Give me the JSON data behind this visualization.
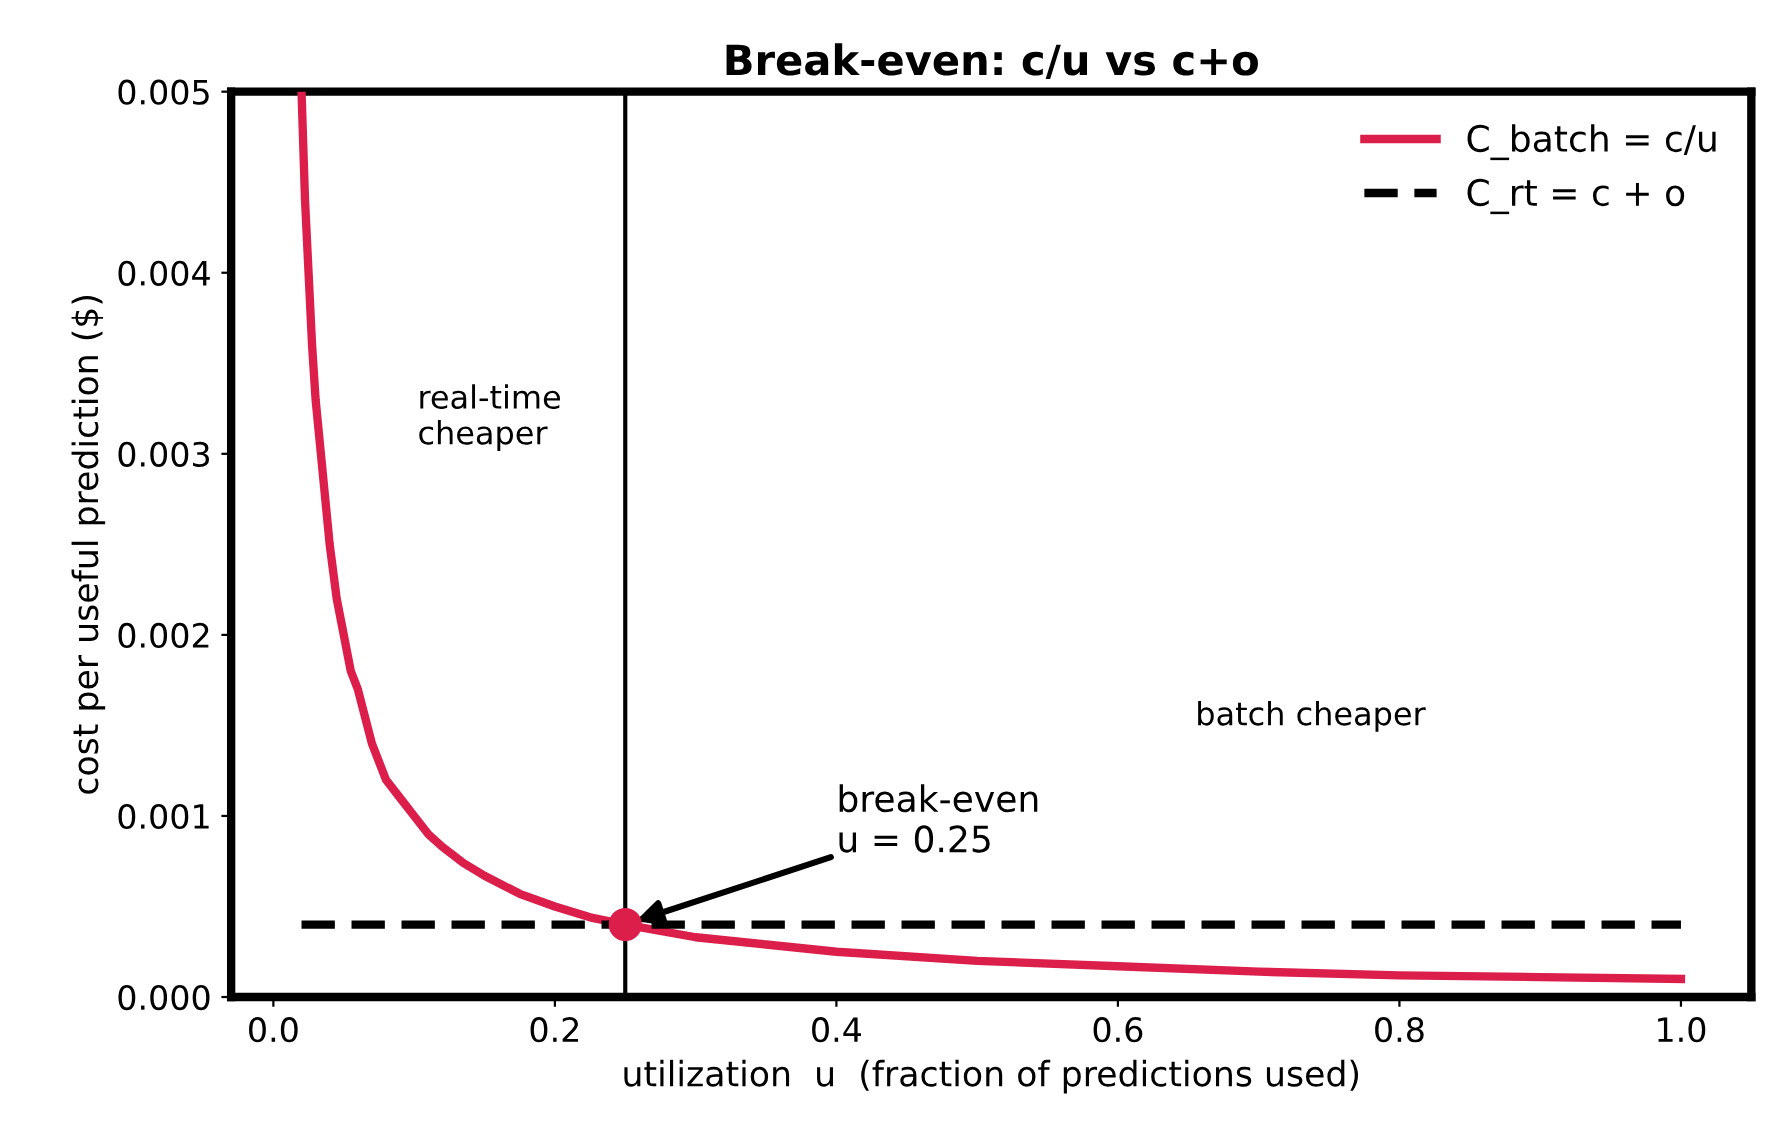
{
  "chart_data": {
    "type": "line",
    "title": "Break-even: c/u vs c+o",
    "xlabel": "utilization  u  (fraction of predictions used)",
    "ylabel": "cost per useful prediction ($)",
    "series": [
      {
        "name": "C_batch = c/u",
        "color": "#dc1e4b",
        "line_style": "solid",
        "x": [
          0.02,
          0.0225,
          0.025,
          0.0275,
          0.03,
          0.0325,
          0.035,
          0.04,
          0.045,
          0.05,
          0.055,
          0.06,
          0.07,
          0.08,
          0.09,
          0.1,
          0.11,
          0.12,
          0.135,
          0.15,
          0.175,
          0.2,
          0.225,
          0.25,
          0.3,
          0.35,
          0.4,
          0.5,
          0.6,
          0.7,
          0.8,
          0.9,
          1.0
        ],
        "values": [
          0.005,
          0.0044,
          0.004,
          0.0036,
          0.0033,
          0.0031,
          0.0029,
          0.0025,
          0.0022,
          0.002,
          0.0018,
          0.0017,
          0.0014,
          0.0012,
          0.0011,
          0.001,
          0.0009,
          0.00083,
          0.00074,
          0.00067,
          0.00057,
          0.0005,
          0.00044,
          0.0004,
          0.00033,
          0.00029,
          0.00025,
          0.0002,
          0.00017,
          0.00014,
          0.00012,
          0.00011,
          0.0001
        ]
      },
      {
        "name": "C_rt = c + o",
        "color": "#000000",
        "line_style": "dashed",
        "x": [
          0.02,
          1.0
        ],
        "values": [
          0.0004,
          0.0004
        ]
      },
      {
        "type": "scatter",
        "color": "#dc1e4b",
        "marker": "circle",
        "x": [
          0.25
        ],
        "values": [
          0.0004
        ]
      }
    ],
    "ref_lines": [
      {
        "axis": "x",
        "value": 0.25,
        "color": "#000000",
        "line_style": "solid"
      }
    ],
    "annotations": [
      "real-time\ncheaper",
      "batch cheaper",
      {
        "text": "break-even\nu = 0.25",
        "x": 0.25,
        "y": 0.0004
      }
    ],
    "xlim": [
      -0.03,
      1.05
    ],
    "ylim": [
      0,
      0.005
    ],
    "xticks": [
      {
        "value": 0,
        "label": "0.0"
      },
      0.2,
      0.4,
      0.6,
      0.8,
      {
        "value": 1,
        "label": "1.0"
      }
    ],
    "yticks": [
      {
        "value": 0,
        "label": "0.000"
      },
      0.001,
      0.002,
      0.003,
      0.004,
      0.005
    ],
    "grid": false,
    "legend": "top right"
  }
}
